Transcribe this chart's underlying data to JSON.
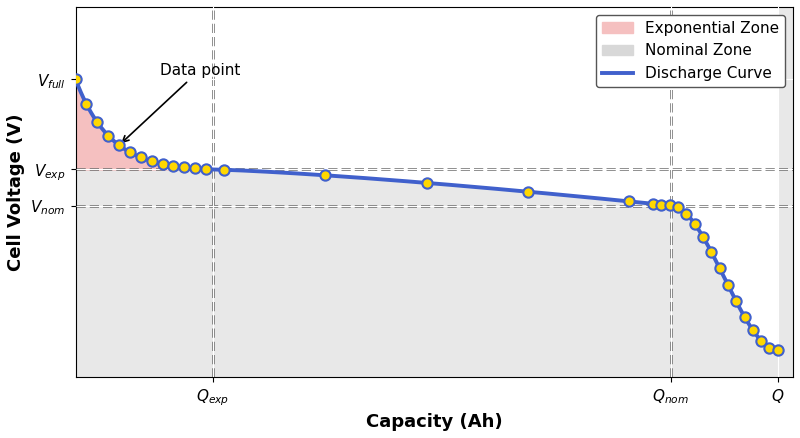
{
  "title": "",
  "xlabel": "Capacity (Ah)",
  "ylabel": "Cell Voltage (V)",
  "V_full": 4.2,
  "V_exp": 3.7,
  "V_nom": 3.5,
  "V_min": 2.7,
  "V_axis_max": 4.6,
  "V_axis_min": 2.55,
  "Q_exp": 0.18,
  "Q_nom": 0.78,
  "Q_max": 0.92,
  "Q_axis_max": 0.94,
  "curve_color": "#4060cc",
  "curve_linewidth": 2.8,
  "exp_fill_color": "#f5c0c0",
  "nom_fill_color": "#d8d8d8",
  "axes_bg_color": "#e8e8e8",
  "dot_color": "#FFD700",
  "dot_edgecolor": "#4060cc",
  "dot_size": 55,
  "dot_linewidth": 1.5,
  "dashed_line_color": "#666666",
  "dashed_linewidth": 1.8,
  "annotation_text": "Data point",
  "annotation_fontsize": 11,
  "label_fontsize": 13,
  "tick_label_fontsize": 11,
  "legend_fontsize": 11,
  "background_color": "#ffffff",
  "grid_color": "#ffffff",
  "grid_linewidth": 0.8
}
